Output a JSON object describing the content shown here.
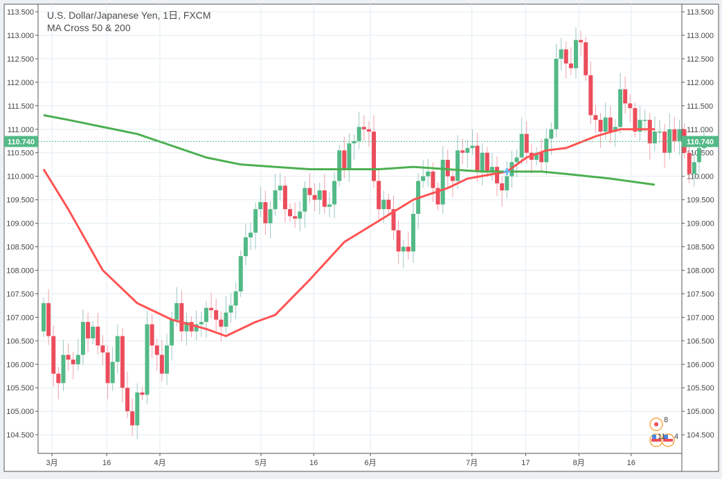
{
  "legend": {
    "title": "U.S. Dollar/Japanese Yen, 1日, FXCM",
    "indicator": "MA Cross 50 & 200"
  },
  "current_price_label": "110.740",
  "events": {
    "top_count": "8",
    "bottom_left_count": "11",
    "bottom_right_count": "4"
  },
  "colors": {
    "up": "#53b987",
    "down": "#eb4d5c",
    "ma50": "#ff5252",
    "ma200": "#4caf50",
    "cross": "#64b5f6",
    "grid": "#e1ecf2"
  },
  "chart_data": {
    "type": "candlestick",
    "title": "U.S. Dollar/Japanese Yen, 1日, FXCM",
    "ylim": [
      104.25,
      113.6
    ],
    "y_ticks": [
      "113.500",
      "113.000",
      "112.500",
      "112.000",
      "111.500",
      "111.000",
      "110.500",
      "110.000",
      "109.500",
      "109.000",
      "108.500",
      "108.000",
      "107.500",
      "107.000",
      "106.500",
      "106.000",
      "105.500",
      "105.000",
      "104.500"
    ],
    "x_ticks": [
      {
        "label": "3月",
        "index": 1.7
      },
      {
        "label": "16",
        "index": 12.8
      },
      {
        "label": "4月",
        "index": 23.6
      },
      {
        "label": "5月",
        "index": 44.1
      },
      {
        "label": "16",
        "index": 54.8
      },
      {
        "label": "6月",
        "index": 66.3
      },
      {
        "label": "7月",
        "index": 86.9
      },
      {
        "label": "17",
        "index": 97.8
      },
      {
        "label": "8月",
        "index": 108.6
      },
      {
        "label": "16",
        "index": 119.2
      }
    ],
    "first_open": 106.7,
    "closes": [
      107.3,
      106.6,
      105.8,
      105.6,
      106.2,
      106.1,
      106.0,
      106.2,
      106.9,
      106.55,
      106.8,
      106.4,
      106.25,
      105.6,
      106.05,
      106.6,
      105.5,
      105.0,
      104.7,
      105.4,
      105.35,
      106.85,
      106.4,
      106.2,
      105.8,
      106.4,
      106.95,
      107.3,
      106.7,
      106.9,
      106.7,
      106.85,
      106.9,
      107.2,
      107.15,
      106.95,
      106.8,
      107.1,
      107.25,
      107.55,
      108.3,
      108.7,
      108.8,
      109.3,
      109.45,
      109.0,
      109.3,
      109.7,
      109.8,
      109.3,
      109.15,
      109.1,
      109.25,
      109.75,
      109.6,
      109.5,
      109.7,
      109.35,
      109.4,
      109.9,
      110.55,
      110.15,
      110.7,
      110.75,
      111.05,
      111.0,
      110.95,
      109.9,
      109.3,
      109.5,
      109.3,
      108.85,
      108.4,
      108.5,
      108.4,
      109.2,
      109.9,
      110.0,
      110.1,
      109.75,
      109.4,
      110.35,
      110.0,
      109.9,
      110.55,
      110.5,
      110.6,
      110.65,
      110.1,
      110.5,
      110.1,
      110.2,
      109.85,
      109.7,
      110.0,
      110.3,
      110.4,
      110.9,
      110.5,
      110.35,
      110.5,
      110.3,
      110.8,
      111.0,
      112.5,
      112.7,
      112.4,
      112.3,
      112.9,
      112.85,
      112.15,
      111.3,
      111.2,
      110.95,
      111.25,
      110.95,
      111.05,
      111.85,
      111.55,
      111.45,
      110.95,
      111.2,
      111.2,
      110.7,
      110.95,
      110.95,
      110.5,
      111.0,
      110.75,
      111.0,
      110.5,
      110.05,
      110.3,
      110.6,
      110.74
    ],
    "series": [
      {
        "name": "MA 50",
        "points": [
          [
            0,
            110.15
          ],
          [
            5,
            109.3
          ],
          [
            12,
            108.0
          ],
          [
            19,
            107.3
          ],
          [
            26,
            106.95
          ],
          [
            33,
            106.75
          ],
          [
            37,
            106.6
          ],
          [
            43,
            106.9
          ],
          [
            47,
            107.05
          ],
          [
            54,
            107.8
          ],
          [
            61,
            108.6
          ],
          [
            68,
            109.05
          ],
          [
            75,
            109.5
          ],
          [
            82,
            109.75
          ],
          [
            86,
            109.95
          ],
          [
            94,
            110.1
          ],
          [
            98,
            110.4
          ],
          [
            102,
            110.55
          ],
          [
            106,
            110.6
          ],
          [
            112,
            110.85
          ],
          [
            117,
            111.0
          ],
          [
            124,
            111.0
          ]
        ]
      },
      {
        "name": "MA 200",
        "points": [
          [
            0,
            111.3
          ],
          [
            5,
            111.2
          ],
          [
            12,
            111.05
          ],
          [
            19,
            110.9
          ],
          [
            26,
            110.65
          ],
          [
            33,
            110.4
          ],
          [
            40,
            110.25
          ],
          [
            47,
            110.2
          ],
          [
            54,
            110.15
          ],
          [
            61,
            110.15
          ],
          [
            68,
            110.15
          ],
          [
            75,
            110.2
          ],
          [
            82,
            110.15
          ],
          [
            89,
            110.1
          ],
          [
            94,
            110.1
          ],
          [
            101,
            110.1
          ],
          [
            106,
            110.05
          ],
          [
            115,
            109.95
          ],
          [
            124,
            109.82
          ]
        ]
      }
    ],
    "cross_marker": {
      "index": 94,
      "value": 110.1
    }
  }
}
